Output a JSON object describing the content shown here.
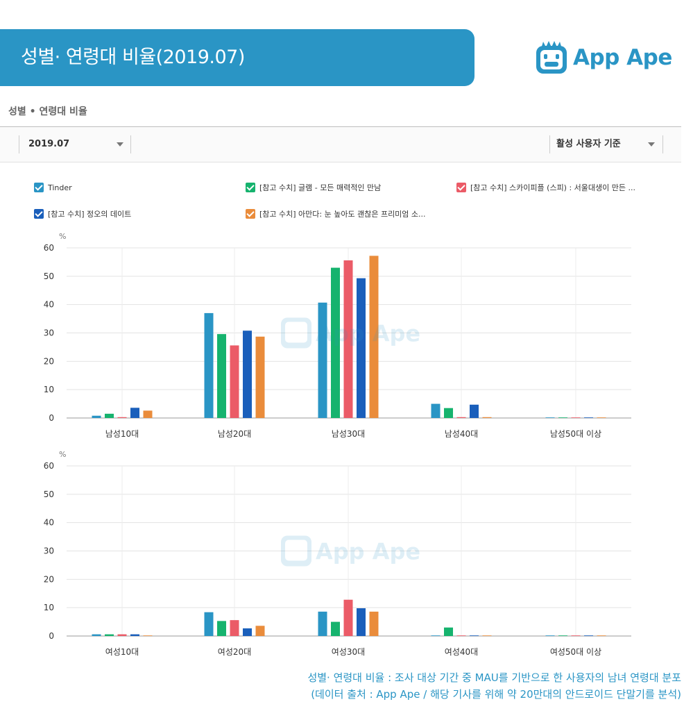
{
  "header": {
    "title": "성별· 연령대 비율(2019.07)",
    "logo_text": "App Ape",
    "brand_color": "#2a95c5"
  },
  "panel": {
    "subtitle": "성별 • 연령대 비율",
    "date_select": "2019.07",
    "basis_select": "활성 사용자 기준"
  },
  "legend": [
    {
      "label": "Tinder",
      "color": "#2a95c5"
    },
    {
      "label": "[참고 수치] 글램 - 모든 매력적인 만남",
      "color": "#16b36e"
    },
    {
      "label": "[참고 수치] 스카이피플 (스피) : 서울대생이 만든 ...",
      "color": "#eb5b67"
    },
    {
      "label": "[참고 수치] 정오의 데이트",
      "color": "#1a5fbb"
    },
    {
      "label": "[참고 수치] 아만다: 눈 높아도 괜찮은 프리미엄 소...",
      "color": "#ea8c3b"
    }
  ],
  "watermark": "App Ape",
  "chart_data": [
    {
      "type": "bar",
      "ylabel": "%",
      "ylim": [
        0,
        60
      ],
      "yticks": [
        0,
        10,
        20,
        30,
        40,
        50,
        60
      ],
      "grid": true,
      "categories": [
        "남성10대",
        "남성20대",
        "남성30대",
        "남성40대",
        "남성50대 이상"
      ],
      "series": [
        {
          "name": "Tinder",
          "values": [
            0.8,
            37.0,
            40.7,
            5.0,
            0.2
          ]
        },
        {
          "name": "[참고 수치] 글램 - 모든 매력적인 만남",
          "values": [
            1.5,
            29.6,
            53.0,
            3.5,
            0.2
          ]
        },
        {
          "name": "[참고 수치] 스카이피플 (스피) : 서울대생이 만든 ...",
          "values": [
            0.3,
            25.6,
            55.6,
            0.3,
            0.2
          ]
        },
        {
          "name": "[참고 수치] 정오의 데이트",
          "values": [
            3.6,
            30.8,
            49.3,
            4.7,
            0.2
          ]
        },
        {
          "name": "[참고 수치] 아만다: 눈 높아도 괜찮은 프리미엄 소...",
          "values": [
            2.6,
            28.7,
            57.2,
            0.3,
            0.2
          ]
        }
      ]
    },
    {
      "type": "bar",
      "ylabel": "%",
      "ylim": [
        0,
        60
      ],
      "yticks": [
        0,
        10,
        20,
        30,
        40,
        50,
        60
      ],
      "grid": true,
      "categories": [
        "여성10대",
        "여성20대",
        "여성30대",
        "여성40대",
        "여성50대 이상"
      ],
      "series": [
        {
          "name": "Tinder",
          "values": [
            0.6,
            8.4,
            8.6,
            0.2,
            0.2
          ]
        },
        {
          "name": "[참고 수치] 글램 - 모든 매력적인 만남",
          "values": [
            0.6,
            5.3,
            5.0,
            3.0,
            0.2
          ]
        },
        {
          "name": "[참고 수치] 스카이피플 (스피) : 서울대생이 만든 ...",
          "values": [
            0.6,
            5.6,
            12.8,
            0.2,
            0.2
          ]
        },
        {
          "name": "[참고 수치] 정오의 데이트",
          "values": [
            0.6,
            2.7,
            9.8,
            0.2,
            0.2
          ]
        },
        {
          "name": "[참고 수치] 아만다: 눈 높아도 괜찮은 프리미엄 소...",
          "values": [
            0.2,
            3.6,
            8.6,
            0.2,
            0.2
          ]
        }
      ]
    }
  ],
  "footnote": {
    "line1": "성별· 연령대 비율 : 조사 대상 기간 중 MAU를 기반으로 한 사용자의 남녀 연령대 분포",
    "line2": "(데이터 출처 : App Ape / 해당 기사를 위해 약 20만대의 안드로이드 단말기를 분석)"
  }
}
